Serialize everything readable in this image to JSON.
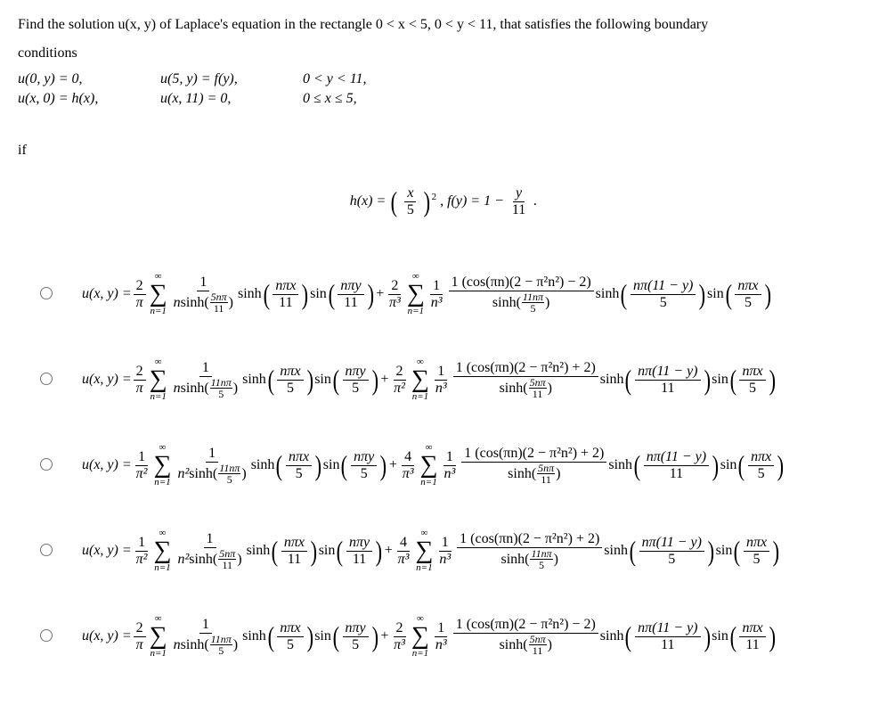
{
  "problem": {
    "line1": "Find the solution u(x, y) of Laplace's equation in the rectangle 0 < x < 5, 0 < y < 11, that satisfies the following boundary",
    "line2": "conditions",
    "bc": {
      "r1c1": "u(0, y) = 0,",
      "r1c2": "u(5, y) = f(y),",
      "r1c3": "0 < y < 11,",
      "r2c1": "u(x, 0) = h(x),",
      "r2c2": "u(x, 11) = 0,",
      "r2c3": "0 ≤ x ≤ 5,"
    }
  },
  "if_label": "if",
  "functions": {
    "h_lhs": "h(x) = ",
    "h_frac_num": "x",
    "h_frac_den": "5",
    "h_exp": "2",
    "sep": ",  ",
    "f_lhs": "f(y) = 1 − ",
    "f_frac_num": "y",
    "f_frac_den": "11",
    "f_end": "."
  },
  "options": [
    {
      "lhs": "u(x, y) = ",
      "c1_num": "2",
      "c1_den": "π",
      "s1_denfrac_co": "n",
      "s1_denfrac_fn": "sinh",
      "s1_denfrac_arg_num": "5nπ",
      "s1_denfrac_arg_den": "11",
      "sh1_arg_num": "nπx",
      "sh1_arg_den": "11",
      "sn1_arg_num": "nπy",
      "sn1_arg_den": "11",
      "plus": " + ",
      "c2_num": "2",
      "c2_den": "π³",
      "s2_num_top": "1",
      "s2_num_paren": "(cos(πn)(2 − π²n²) − 2)",
      "s2_den": "n³",
      "s2_den_fn": "sinh",
      "s2_den_arg_num": "11nπ",
      "s2_den_arg_den": "5",
      "sh2_arg_num": "nπ(11 − y)",
      "sh2_arg_den": "5",
      "sn2_arg_num": "nπx",
      "sn2_arg_den": "5"
    },
    {
      "lhs": "u(x, y) = ",
      "c1_num": "2",
      "c1_den": "π",
      "s1_denfrac_co": "n",
      "s1_denfrac_fn": "sinh",
      "s1_denfrac_arg_num": "11nπ",
      "s1_denfrac_arg_den": "5",
      "sh1_arg_num": "nπx",
      "sh1_arg_den": "5",
      "sn1_arg_num": "nπy",
      "sn1_arg_den": "5",
      "plus": " + ",
      "c2_num": "2",
      "c2_den": "π²",
      "s2_num_top": "1",
      "s2_num_paren": "(cos(πn)(2 − π²n²) + 2)",
      "s2_den": "n³",
      "s2_den_fn": "sinh",
      "s2_den_arg_num": "5nπ",
      "s2_den_arg_den": "11",
      "sh2_arg_num": "nπ(11 − y)",
      "sh2_arg_den": "11",
      "sn2_arg_num": "nπx",
      "sn2_arg_den": "5"
    },
    {
      "lhs": "u(x, y) = ",
      "c1_num": "1",
      "c1_den": "π²",
      "s1_denfrac_co": "n²",
      "s1_denfrac_fn": "sinh",
      "s1_denfrac_arg_num": "11nπ",
      "s1_denfrac_arg_den": "5",
      "sh1_arg_num": "nπx",
      "sh1_arg_den": "5",
      "sn1_arg_num": "nπy",
      "sn1_arg_den": "5",
      "plus": " + ",
      "c2_num": "4",
      "c2_den": "π³",
      "s2_num_top": "1",
      "s2_num_paren": "(cos(πn)(2 − π²n²) + 2)",
      "s2_den": "n³",
      "s2_den_fn": "sinh",
      "s2_den_arg_num": "5nπ",
      "s2_den_arg_den": "11",
      "sh2_arg_num": "nπ(11 − y)",
      "sh2_arg_den": "11",
      "sn2_arg_num": "nπx",
      "sn2_arg_den": "5"
    },
    {
      "lhs": "u(x, y) = ",
      "c1_num": "1",
      "c1_den": "π²",
      "s1_denfrac_co": "n²",
      "s1_denfrac_fn": "sinh",
      "s1_denfrac_arg_num": "5nπ",
      "s1_denfrac_arg_den": "11",
      "sh1_arg_num": "nπx",
      "sh1_arg_den": "11",
      "sn1_arg_num": "nπy",
      "sn1_arg_den": "11",
      "plus": " + ",
      "c2_num": "4",
      "c2_den": "π³",
      "s2_num_top": "1",
      "s2_num_paren": "(cos(πn)(2 − π²n²) + 2)",
      "s2_den": "n³",
      "s2_den_fn": "sinh",
      "s2_den_arg_num": "11nπ",
      "s2_den_arg_den": "5",
      "sh2_arg_num": "nπ(11 − y)",
      "sh2_arg_den": "5",
      "sn2_arg_num": "nπx",
      "sn2_arg_den": "5"
    },
    {
      "lhs": "u(x, y) = ",
      "c1_num": "2",
      "c1_den": "π",
      "s1_denfrac_co": "n",
      "s1_denfrac_fn": "sinh",
      "s1_denfrac_arg_num": "11nπ",
      "s1_denfrac_arg_den": "5",
      "sh1_arg_num": "nπx",
      "sh1_arg_den": "5",
      "sn1_arg_num": "nπy",
      "sn1_arg_den": "5",
      "plus": " + ",
      "c2_num": "2",
      "c2_den": "π³",
      "s2_num_top": "1",
      "s2_num_paren": "(cos(πn)(2 − π²n²) − 2)",
      "s2_den": "n³",
      "s2_den_fn": "sinh",
      "s2_den_arg_num": "5nπ",
      "s2_den_arg_den": "11",
      "sh2_arg_num": "nπ(11 − y)",
      "sh2_arg_den": "11",
      "sn2_arg_num": "nπx",
      "sn2_arg_den": "11"
    }
  ],
  "sum_top": "∞",
  "sum_bot": "n=1",
  "sinh_label": "sinh",
  "sin_label": "sin"
}
